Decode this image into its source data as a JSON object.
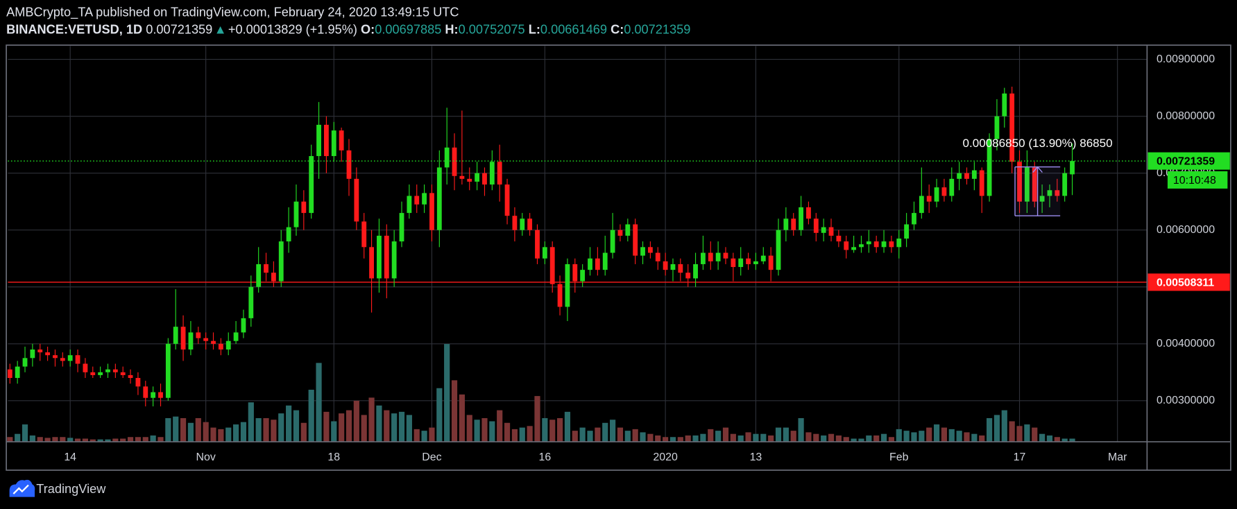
{
  "header": {
    "line1": "AMBCrypto_TA published on TradingView.com, February 24, 2020 13:49:15 UTC",
    "symbol": "BINANCE:VETUSD, 1D",
    "last": "0.00721359",
    "arrow": "▲",
    "change": "+0.00013829 (+1.95%)",
    "ohlc": [
      {
        "label": "O:",
        "value": "0.00697885"
      },
      {
        "label": "H:",
        "value": "0.00752075"
      },
      {
        "label": "L:",
        "value": "0.00661469"
      },
      {
        "label": "C:",
        "value": "0.00721359"
      }
    ]
  },
  "chart_data": {
    "type": "candlestick",
    "xlim": [
      -0.27,
      150.93
    ],
    "xticks": [
      {
        "value": 8,
        "label": "14"
      },
      {
        "value": 26,
        "label": "Nov"
      },
      {
        "value": 43,
        "label": "18"
      },
      {
        "value": 56,
        "label": "Dec"
      },
      {
        "value": 71,
        "label": "16"
      },
      {
        "value": 87,
        "label": "2020"
      },
      {
        "value": 99,
        "label": "13"
      },
      {
        "value": 118,
        "label": "Feb"
      },
      {
        "value": 134,
        "label": "17"
      },
      {
        "value": 147,
        "label": "Mar"
      }
    ],
    "ylim": [
      0.002278,
      0.009236
    ],
    "yticks": [
      {
        "value": 0.003,
        "label": "0.00300000"
      },
      {
        "value": 0.004,
        "label": "0.00400000"
      },
      {
        "value": 0.005,
        "label": "0.00500000"
      },
      {
        "value": 0.006,
        "label": "0.00600000"
      },
      {
        "value": 0.007,
        "label": "0.00700000"
      },
      {
        "value": 0.008,
        "label": "0.00800000"
      },
      {
        "value": 0.009,
        "label": "0.00900000"
      }
    ],
    "grid": true,
    "up_color": "#22dd22",
    "down_color": "#ff1a1a",
    "volume_up_color": "#2b6b6b",
    "volume_down_color": "#7b3535",
    "vlim": [
      0,
      502
    ],
    "open": [
      0.00355,
      0.0034,
      0.0036,
      0.00375,
      0.0039,
      0.00385,
      0.0038,
      0.00375,
      0.0037,
      0.0038,
      0.00365,
      0.0035,
      0.00345,
      0.0035,
      0.00355,
      0.0035,
      0.00345,
      0.0034,
      0.00325,
      0.00305,
      0.00315,
      0.00305,
      0.004,
      0.0043,
      0.0039,
      0.0042,
      0.0041,
      0.00405,
      0.004,
      0.0039,
      0.00405,
      0.0042,
      0.00445,
      0.005,
      0.0054,
      0.00525,
      0.0051,
      0.0058,
      0.00605,
      0.0065,
      0.0063,
      0.0073,
      0.00785,
      0.0073,
      0.00775,
      0.0074,
      0.0069,
      0.00615,
      0.0057,
      0.00515,
      0.0059,
      0.00515,
      0.0058,
      0.0063,
      0.0066,
      0.00645,
      0.00665,
      0.006,
      0.0071,
      0.00745,
      0.00695,
      0.0069,
      0.00685,
      0.007,
      0.0068,
      0.0072,
      0.0068,
      0.00625,
      0.006,
      0.0062,
      0.006,
      0.0055,
      0.0057,
      0.00505,
      0.00465,
      0.0054,
      0.0051,
      0.0053,
      0.0055,
      0.0053,
      0.0056,
      0.006,
      0.0059,
      0.0061,
      0.00555,
      0.0057,
      0.0056,
      0.00545,
      0.0053,
      0.0054,
      0.00525,
      0.00515,
      0.0054,
      0.0056,
      0.00545,
      0.0056,
      0.0055,
      0.00535,
      0.0055,
      0.0054,
      0.00545,
      0.00555,
      0.0053,
      0.006,
      0.0062,
      0.006,
      0.0064,
      0.0062,
      0.00595,
      0.00605,
      0.0059,
      0.0058,
      0.00565,
      0.0057,
      0.00575,
      0.0058,
      0.0057,
      0.0058,
      0.0057,
      0.00585,
      0.0061,
      0.0063,
      0.0066,
      0.0065,
      0.00675,
      0.0066,
      0.0069,
      0.007,
      0.0069,
      0.00705,
      0.0066,
      0.0076,
      0.008,
      0.0084,
      0.0072,
      0.0065,
      0.0071,
      0.0065,
      0.0066,
      0.0067,
      0.0066,
      0.00697885
    ],
    "high": [
      0.00365,
      0.0037,
      0.00395,
      0.004,
      0.004,
      0.00395,
      0.0039,
      0.00385,
      0.0039,
      0.0039,
      0.00375,
      0.0036,
      0.0036,
      0.00365,
      0.00365,
      0.0036,
      0.00355,
      0.0035,
      0.00335,
      0.00325,
      0.0033,
      0.0041,
      0.00496,
      0.0045,
      0.0044,
      0.0043,
      0.0042,
      0.0042,
      0.0041,
      0.0042,
      0.0044,
      0.0046,
      0.0052,
      0.0057,
      0.0056,
      0.00545,
      0.006,
      0.0064,
      0.0068,
      0.0067,
      0.0075,
      0.00825,
      0.008,
      0.0079,
      0.0078,
      0.0076,
      0.0071,
      0.0063,
      0.006,
      0.0062,
      0.0061,
      0.006,
      0.0065,
      0.0068,
      0.0068,
      0.0068,
      0.0068,
      0.0074,
      0.00815,
      0.0077,
      0.0081,
      0.0071,
      0.0072,
      0.0071,
      0.0074,
      0.0075,
      0.0069,
      0.0064,
      0.0063,
      0.0063,
      0.0061,
      0.0058,
      0.0058,
      0.0052,
      0.0055,
      0.0055,
      0.0054,
      0.0057,
      0.0057,
      0.0059,
      0.0063,
      0.0061,
      0.0062,
      0.0062,
      0.0058,
      0.0058,
      0.0057,
      0.0056,
      0.0055,
      0.0055,
      0.0054,
      0.0056,
      0.0059,
      0.0058,
      0.0058,
      0.0057,
      0.0056,
      0.0057,
      0.0056,
      0.0056,
      0.0057,
      0.0057,
      0.0062,
      0.0064,
      0.0063,
      0.0066,
      0.0065,
      0.0063,
      0.0062,
      0.0062,
      0.006,
      0.0059,
      0.0059,
      0.0059,
      0.006,
      0.0059,
      0.006,
      0.0059,
      0.006,
      0.0063,
      0.0065,
      0.0071,
      0.0068,
      0.0069,
      0.0069,
      0.0071,
      0.0072,
      0.0071,
      0.0072,
      0.0071,
      0.0077,
      0.0083,
      0.0085,
      0.00852,
      0.0074,
      0.0074,
      0.0072,
      0.0068,
      0.0068,
      0.0069,
      0.0071,
      0.00752075
    ],
    "low": [
      0.0033,
      0.0033,
      0.0035,
      0.0036,
      0.0037,
      0.0037,
      0.0036,
      0.0036,
      0.0036,
      0.0035,
      0.0034,
      0.0034,
      0.0034,
      0.0034,
      0.0034,
      0.0034,
      0.0033,
      0.0031,
      0.0029,
      0.0029,
      0.0029,
      0.003,
      0.0039,
      0.0037,
      0.0038,
      0.004,
      0.0039,
      0.0039,
      0.0038,
      0.0038,
      0.004,
      0.0041,
      0.0043,
      0.0049,
      0.0051,
      0.005,
      0.005,
      0.0056,
      0.0059,
      0.006,
      0.0062,
      0.0069,
      0.007,
      0.0072,
      0.0072,
      0.0066,
      0.006,
      0.0055,
      0.00455,
      0.0049,
      0.0048,
      0.005,
      0.0057,
      0.0062,
      0.0063,
      0.0063,
      0.0058,
      0.0057,
      0.0068,
      0.0067,
      0.0068,
      0.0067,
      0.0067,
      0.0066,
      0.0067,
      0.0065,
      0.0061,
      0.0058,
      0.0059,
      0.0059,
      0.0054,
      0.0054,
      0.0049,
      0.0045,
      0.0044,
      0.0049,
      0.005,
      0.0052,
      0.0052,
      0.0052,
      0.0055,
      0.0058,
      0.0058,
      0.0054,
      0.0054,
      0.0055,
      0.0053,
      0.0052,
      0.0051,
      0.0051,
      0.005,
      0.005,
      0.0053,
      0.0053,
      0.0053,
      0.0054,
      0.0051,
      0.0052,
      0.0053,
      0.0053,
      0.0054,
      0.0051,
      0.0052,
      0.0058,
      0.0059,
      0.0059,
      0.0061,
      0.0058,
      0.0058,
      0.0058,
      0.0057,
      0.0055,
      0.0056,
      0.0056,
      0.0056,
      0.0056,
      0.0056,
      0.0056,
      0.0055,
      0.0057,
      0.006,
      0.0062,
      0.0063,
      0.0064,
      0.0065,
      0.0065,
      0.0067,
      0.0068,
      0.0067,
      0.0063,
      0.0065,
      0.0074,
      0.0078,
      0.007,
      0.0063,
      0.0063,
      0.0064,
      0.0063,
      0.0064,
      0.0065,
      0.0065,
      0.00661469
    ],
    "close": [
      0.0034,
      0.0036,
      0.00375,
      0.0039,
      0.00385,
      0.0038,
      0.00375,
      0.0037,
      0.0038,
      0.00365,
      0.0035,
      0.00345,
      0.0035,
      0.00355,
      0.0035,
      0.00345,
      0.0034,
      0.00325,
      0.00305,
      0.00315,
      0.00305,
      0.004,
      0.0043,
      0.0039,
      0.0042,
      0.0041,
      0.00405,
      0.004,
      0.0039,
      0.00405,
      0.0042,
      0.00445,
      0.005,
      0.0054,
      0.00525,
      0.0051,
      0.0058,
      0.00605,
      0.0065,
      0.0063,
      0.0073,
      0.00785,
      0.0073,
      0.00775,
      0.0074,
      0.0069,
      0.00615,
      0.0057,
      0.00515,
      0.0059,
      0.00515,
      0.0058,
      0.0063,
      0.0066,
      0.00645,
      0.00665,
      0.006,
      0.0071,
      0.00745,
      0.00695,
      0.0069,
      0.00685,
      0.007,
      0.0068,
      0.0072,
      0.0068,
      0.00625,
      0.006,
      0.0062,
      0.006,
      0.0055,
      0.0057,
      0.00505,
      0.00465,
      0.0054,
      0.0051,
      0.0053,
      0.0055,
      0.0053,
      0.0056,
      0.006,
      0.0059,
      0.0061,
      0.00555,
      0.0057,
      0.0056,
      0.00545,
      0.0053,
      0.0054,
      0.00525,
      0.00515,
      0.0054,
      0.0056,
      0.00545,
      0.0056,
      0.0055,
      0.00535,
      0.0055,
      0.0054,
      0.00545,
      0.00555,
      0.0053,
      0.006,
      0.0062,
      0.006,
      0.0064,
      0.0062,
      0.00595,
      0.00605,
      0.0059,
      0.0058,
      0.00565,
      0.0057,
      0.00575,
      0.0058,
      0.0057,
      0.0058,
      0.0057,
      0.00585,
      0.0061,
      0.0063,
      0.0066,
      0.0065,
      0.00675,
      0.0066,
      0.0069,
      0.007,
      0.0069,
      0.00705,
      0.0066,
      0.0076,
      0.008,
      0.0084,
      0.0072,
      0.0065,
      0.0071,
      0.0065,
      0.0066,
      0.0067,
      0.0066,
      0.007,
      0.00721359
    ],
    "volume": [
      6,
      10,
      22,
      8,
      6,
      5,
      6,
      6,
      5,
      4,
      4,
      3,
      3,
      3,
      4,
      4,
      6,
      6,
      6,
      8,
      6,
      30,
      32,
      30,
      24,
      30,
      25,
      18,
      16,
      18,
      22,
      25,
      50,
      30,
      30,
      28,
      36,
      46,
      40,
      24,
      66,
      100,
      38,
      26,
      36,
      40,
      52,
      34,
      56,
      46,
      40,
      36,
      38,
      34,
      16,
      14,
      18,
      68,
      124,
      78,
      60,
      34,
      28,
      30,
      26,
      40,
      24,
      16,
      18,
      20,
      58,
      30,
      28,
      30,
      38,
      14,
      18,
      14,
      18,
      24,
      28,
      18,
      14,
      16,
      12,
      10,
      8,
      6,
      6,
      6,
      8,
      8,
      10,
      16,
      14,
      18,
      10,
      8,
      12,
      10,
      10,
      8,
      18,
      18,
      14,
      30,
      12,
      10,
      8,
      10,
      8,
      6,
      4,
      4,
      8,
      8,
      10,
      6,
      16,
      14,
      12,
      14,
      18,
      22,
      18,
      16,
      14,
      12,
      10,
      8,
      30,
      34,
      40,
      26,
      20,
      22,
      18,
      10,
      8,
      6,
      4,
      4
    ],
    "price_lines": [
      {
        "value": 0.00721359,
        "color": "#22dd22",
        "text_color": "#000000",
        "dashed": true,
        "countdown": "10:10:48"
      },
      {
        "value": 0.00508311,
        "color": "#ff1a1a",
        "text_color": "#ffffff",
        "dashed": false
      }
    ],
    "measure": {
      "from": 133.4,
      "to": 139.4,
      "low": 0.00625,
      "high": 0.00711,
      "color": "#9d8df1",
      "label": "0.00086850 (13.90%) 86850"
    }
  },
  "footer": {
    "brand": "TradingView"
  }
}
